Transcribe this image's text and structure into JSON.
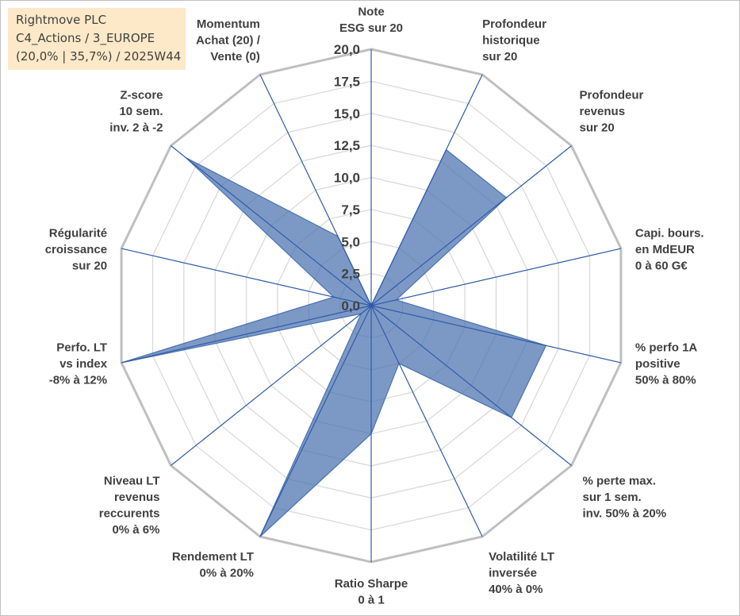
{
  "info": {
    "line1": "Rightmove PLC",
    "line2": "C4_Actions / 3_EUROPE",
    "line3": "(20,0% | 35,7%) / 2025W44"
  },
  "chart_data": {
    "type": "radar",
    "rmax": 20,
    "tick_step": 2.5,
    "tick_labels": [
      "0,0",
      "2,5",
      "5,0",
      "7,5",
      "10,0",
      "12,5",
      "15,0",
      "17,5",
      "20,0"
    ],
    "axes": [
      [
        "Note",
        "ESG sur 20"
      ],
      [
        "Profondeur",
        "historique",
        "sur 20"
      ],
      [
        "Profondeur",
        "revenus",
        "sur 20"
      ],
      [
        "Capi. bours.",
        "en MdEUR",
        "0 à 60 G€"
      ],
      [
        "% perfo 1A",
        "positive",
        "50% à 80%"
      ],
      [
        "% perte max.",
        "sur 1 sem.",
        "inv. 50% à 20%"
      ],
      [
        "Volatilité LT",
        "inversée",
        "40% à 0%"
      ],
      [
        "Ratio Sharpe",
        "0 à 1"
      ],
      [
        "Rendement LT",
        "0% à 20%"
      ],
      [
        "Niveau LT",
        "revenus",
        "reccurents",
        "0% à 6%"
      ],
      [
        "Perfo. LT",
        "vs index",
        "-8% à 12%"
      ],
      [
        "Régularité",
        "croissance",
        "sur 20"
      ],
      [
        "Z-score",
        "10 sem.",
        "inv. 2 à -2"
      ],
      [
        "Momentum",
        "Achat (20) /",
        "Vente (0)"
      ]
    ],
    "values": [
      0,
      13.5,
      13.5,
      2,
      14,
      14,
      5,
      10,
      20,
      1,
      20,
      3,
      18.5,
      6
    ],
    "colors": {
      "fill": "#4a72b0",
      "fill_opacity": 0.72,
      "grid_outer": "#bfbfbf",
      "grid_inner": "#d9d9d9",
      "spoke": "#2e5ba8",
      "text": "#404040",
      "info_bg": "#fde9c8"
    }
  }
}
